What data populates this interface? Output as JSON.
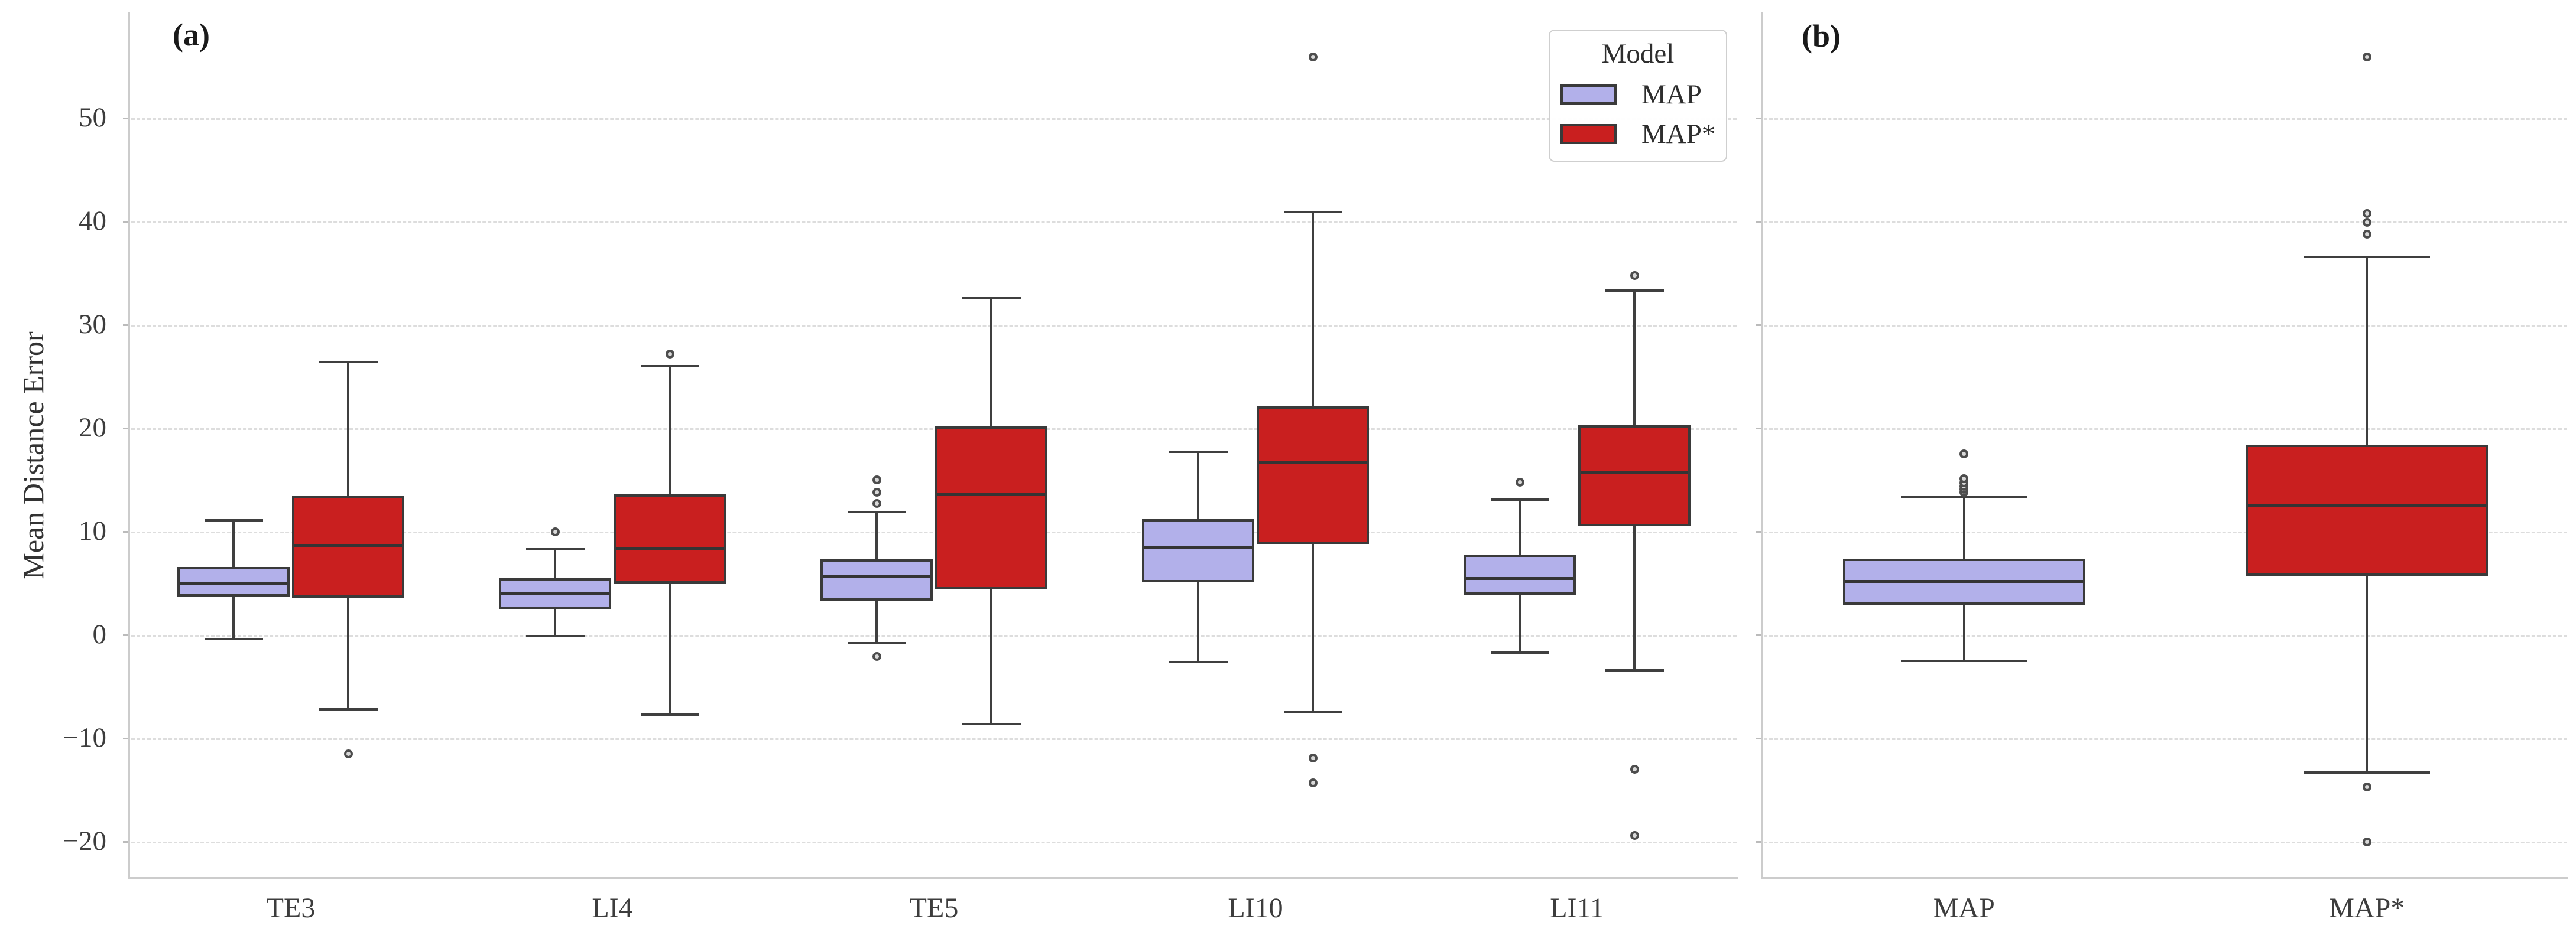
{
  "figure": {
    "panel_a_label": "(a)",
    "panel_b_label": "(b)"
  },
  "y_axis": {
    "label": "Mean Distance Error",
    "ticks": [
      50,
      40,
      30,
      20,
      10,
      0,
      -10,
      -20
    ]
  },
  "legend": {
    "title": "Model",
    "entries": [
      {
        "label": "MAP",
        "color": "#b2b0ea"
      },
      {
        "label": "MAP*",
        "color": "#c91f1f"
      }
    ]
  },
  "colors": {
    "map_fill": "#b2b0ea",
    "map_star_fill": "#c91f1f",
    "box_edge": "#3a3a3a",
    "gridline": "#dddddd",
    "spine": "#cccccc",
    "text": "#3a3a3a"
  },
  "chart_data": {
    "type": "boxplot",
    "title": "",
    "xlabel": "",
    "ylabel": "Mean Distance Error",
    "ylim": [
      -24,
      60
    ],
    "yticks": [
      -20,
      -10,
      0,
      10,
      20,
      30,
      40,
      50
    ],
    "grid": "horizontal dashed",
    "legend_position": "top-right of panel (a)",
    "panels": [
      {
        "label": "(a)",
        "categories": [
          "TE3",
          "LI4",
          "TE5",
          "LI10",
          "LI11"
        ],
        "boxes": [
          {
            "category": "TE3",
            "model": "MAP",
            "whislo": -0.4,
            "q1": 3.7,
            "med": 5.0,
            "q3": 6.6,
            "whishi": 11.1,
            "outliers": []
          },
          {
            "category": "TE3",
            "model": "MAP*",
            "whislo": -7.2,
            "q1": 3.6,
            "med": 8.7,
            "q3": 13.5,
            "whishi": 26.4,
            "outliers": [
              -11.5
            ]
          },
          {
            "category": "LI4",
            "model": "MAP",
            "whislo": -0.1,
            "q1": 2.5,
            "med": 4.0,
            "q3": 5.5,
            "whishi": 8.3,
            "outliers": [
              10.0
            ]
          },
          {
            "category": "LI4",
            "model": "MAP*",
            "whislo": -7.7,
            "q1": 5.0,
            "med": 8.4,
            "q3": 13.6,
            "whishi": 26.0,
            "outliers": [
              27.2
            ]
          },
          {
            "category": "TE5",
            "model": "MAP",
            "whislo": -0.8,
            "q1": 3.3,
            "med": 5.7,
            "q3": 7.3,
            "whishi": 11.9,
            "outliers": [
              15.0,
              13.8,
              12.7,
              -2.1
            ]
          },
          {
            "category": "TE5",
            "model": "MAP*",
            "whislo": -8.6,
            "q1": 4.4,
            "med": 13.6,
            "q3": 20.2,
            "whishi": 32.6,
            "outliers": []
          },
          {
            "category": "LI10",
            "model": "MAP",
            "whislo": -2.6,
            "q1": 5.1,
            "med": 8.5,
            "q3": 11.2,
            "whishi": 17.7,
            "outliers": []
          },
          {
            "category": "LI10",
            "model": "MAP*",
            "whislo": -7.4,
            "q1": 8.8,
            "med": 16.7,
            "q3": 22.1,
            "whishi": 40.9,
            "outliers": [
              55.9,
              -11.9,
              -14.3
            ]
          },
          {
            "category": "LI11",
            "model": "MAP",
            "whislo": -1.7,
            "q1": 3.9,
            "med": 5.5,
            "q3": 7.8,
            "whishi": 13.1,
            "outliers": [
              14.8
            ]
          },
          {
            "category": "LI11",
            "model": "MAP*",
            "whislo": -3.4,
            "q1": 10.5,
            "med": 15.7,
            "q3": 20.3,
            "whishi": 33.3,
            "outliers": [
              34.8,
              -13.0,
              -19.4
            ]
          }
        ]
      },
      {
        "label": "(b)",
        "categories": [
          "MAP",
          "MAP*"
        ],
        "boxes": [
          {
            "category": "MAP",
            "model": "MAP",
            "whislo": -2.5,
            "q1": 2.9,
            "med": 5.2,
            "q3": 7.4,
            "whishi": 13.4,
            "outliers": [
              13.8,
              14.1,
              14.4,
              14.7,
              15.1,
              17.5
            ]
          },
          {
            "category": "MAP*",
            "model": "MAP*",
            "whislo": -13.3,
            "q1": 5.7,
            "med": 12.6,
            "q3": 18.4,
            "whishi": 36.6,
            "outliers": [
              55.9,
              40.8,
              39.9,
              38.8,
              -14.7,
              -20.0
            ]
          }
        ]
      }
    ]
  }
}
